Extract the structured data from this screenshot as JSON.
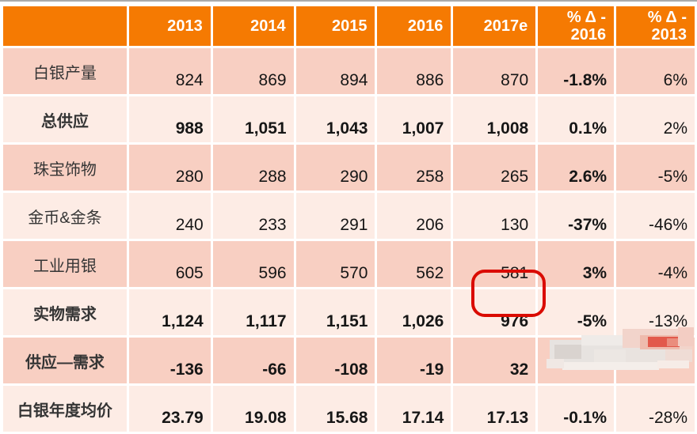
{
  "colors": {
    "header_bg": "#f57a02",
    "header_text": "#ffffff",
    "row_medium": "#f8cfc2",
    "row_light": "#fdece5",
    "number_text": "#161616",
    "label_text": "#353535",
    "highlight_box": "#da0b00",
    "top_line": "#ababab"
  },
  "table": {
    "header": {
      "blank": "",
      "columns": [
        "2013",
        "2014",
        "2015",
        "2016",
        "2017e"
      ],
      "delta_2016": {
        "line1": "% Δ -",
        "line2": "2016"
      },
      "delta_2013": {
        "line1": "% Δ -",
        "line2": "2013"
      }
    },
    "rows": [
      {
        "label": "白银产量",
        "bold": false,
        "values": [
          "824",
          "869",
          "894",
          "886",
          "870",
          "-1.8%",
          "6%"
        ]
      },
      {
        "label": "总供应",
        "bold": true,
        "values": [
          "988",
          "1,051",
          "1,043",
          "1,007",
          "1,008",
          "0.1%",
          "2%"
        ]
      },
      {
        "label": "珠宝饰物",
        "bold": false,
        "values": [
          "280",
          "288",
          "290",
          "258",
          "265",
          "2.6%",
          "-5%"
        ]
      },
      {
        "label": "金币&金条",
        "bold": false,
        "values": [
          "240",
          "233",
          "291",
          "206",
          "130",
          "-37%",
          "-46%"
        ]
      },
      {
        "label": "工业用银",
        "bold": false,
        "values": [
          "605",
          "596",
          "570",
          "562",
          "581",
          "3%",
          "-4%"
        ]
      },
      {
        "label": "实物需求",
        "bold": true,
        "values": [
          "1,124",
          "1,117",
          "1,151",
          "1,026",
          "976",
          "-5%",
          "-13%"
        ]
      },
      {
        "label": "供应—需求",
        "bold": true,
        "values": [
          "-136",
          "-66",
          "-108",
          "-19",
          "32",
          "",
          ""
        ],
        "censored_cols": [
          5,
          6
        ]
      },
      {
        "label": "白银年度均价",
        "bold": true,
        "values": [
          "23.79",
          "19.08",
          "15.68",
          "17.14",
          "17.13",
          "-0.1%",
          "-28%"
        ]
      }
    ]
  },
  "annotations": {
    "highlighted_value": {
      "row_label": "实物需求",
      "column": "2017e",
      "value": "976"
    },
    "censored_note": "pixelated mosaic over 供应—需求 % Δ cells"
  },
  "mosaic_rects": [
    [
      4,
      18,
      92,
      32,
      "#e7e3e0"
    ],
    [
      10,
      24,
      34,
      18,
      "#d9d3cf"
    ],
    [
      44,
      12,
      52,
      13,
      "#efebe8"
    ],
    [
      96,
      4,
      88,
      26,
      "#f2d4cb"
    ],
    [
      96,
      28,
      58,
      18,
      "#e9e3df"
    ],
    [
      118,
      12,
      50,
      18,
      "#eebbad"
    ],
    [
      128,
      14,
      40,
      13,
      "#e2594b"
    ],
    [
      152,
      16,
      16,
      10,
      "#ea8d7d"
    ],
    [
      150,
      30,
      34,
      16,
      "#efdcd5"
    ],
    [
      20,
      46,
      122,
      10,
      "#f4eeea"
    ],
    [
      0,
      42,
      22,
      12,
      "#f0e8e4"
    ],
    [
      166,
      2,
      20,
      24,
      "#f3cdc3"
    ],
    [
      60,
      30,
      40,
      16,
      "#ece7e3"
    ],
    [
      140,
      44,
      40,
      10,
      "#f6ece7"
    ]
  ]
}
